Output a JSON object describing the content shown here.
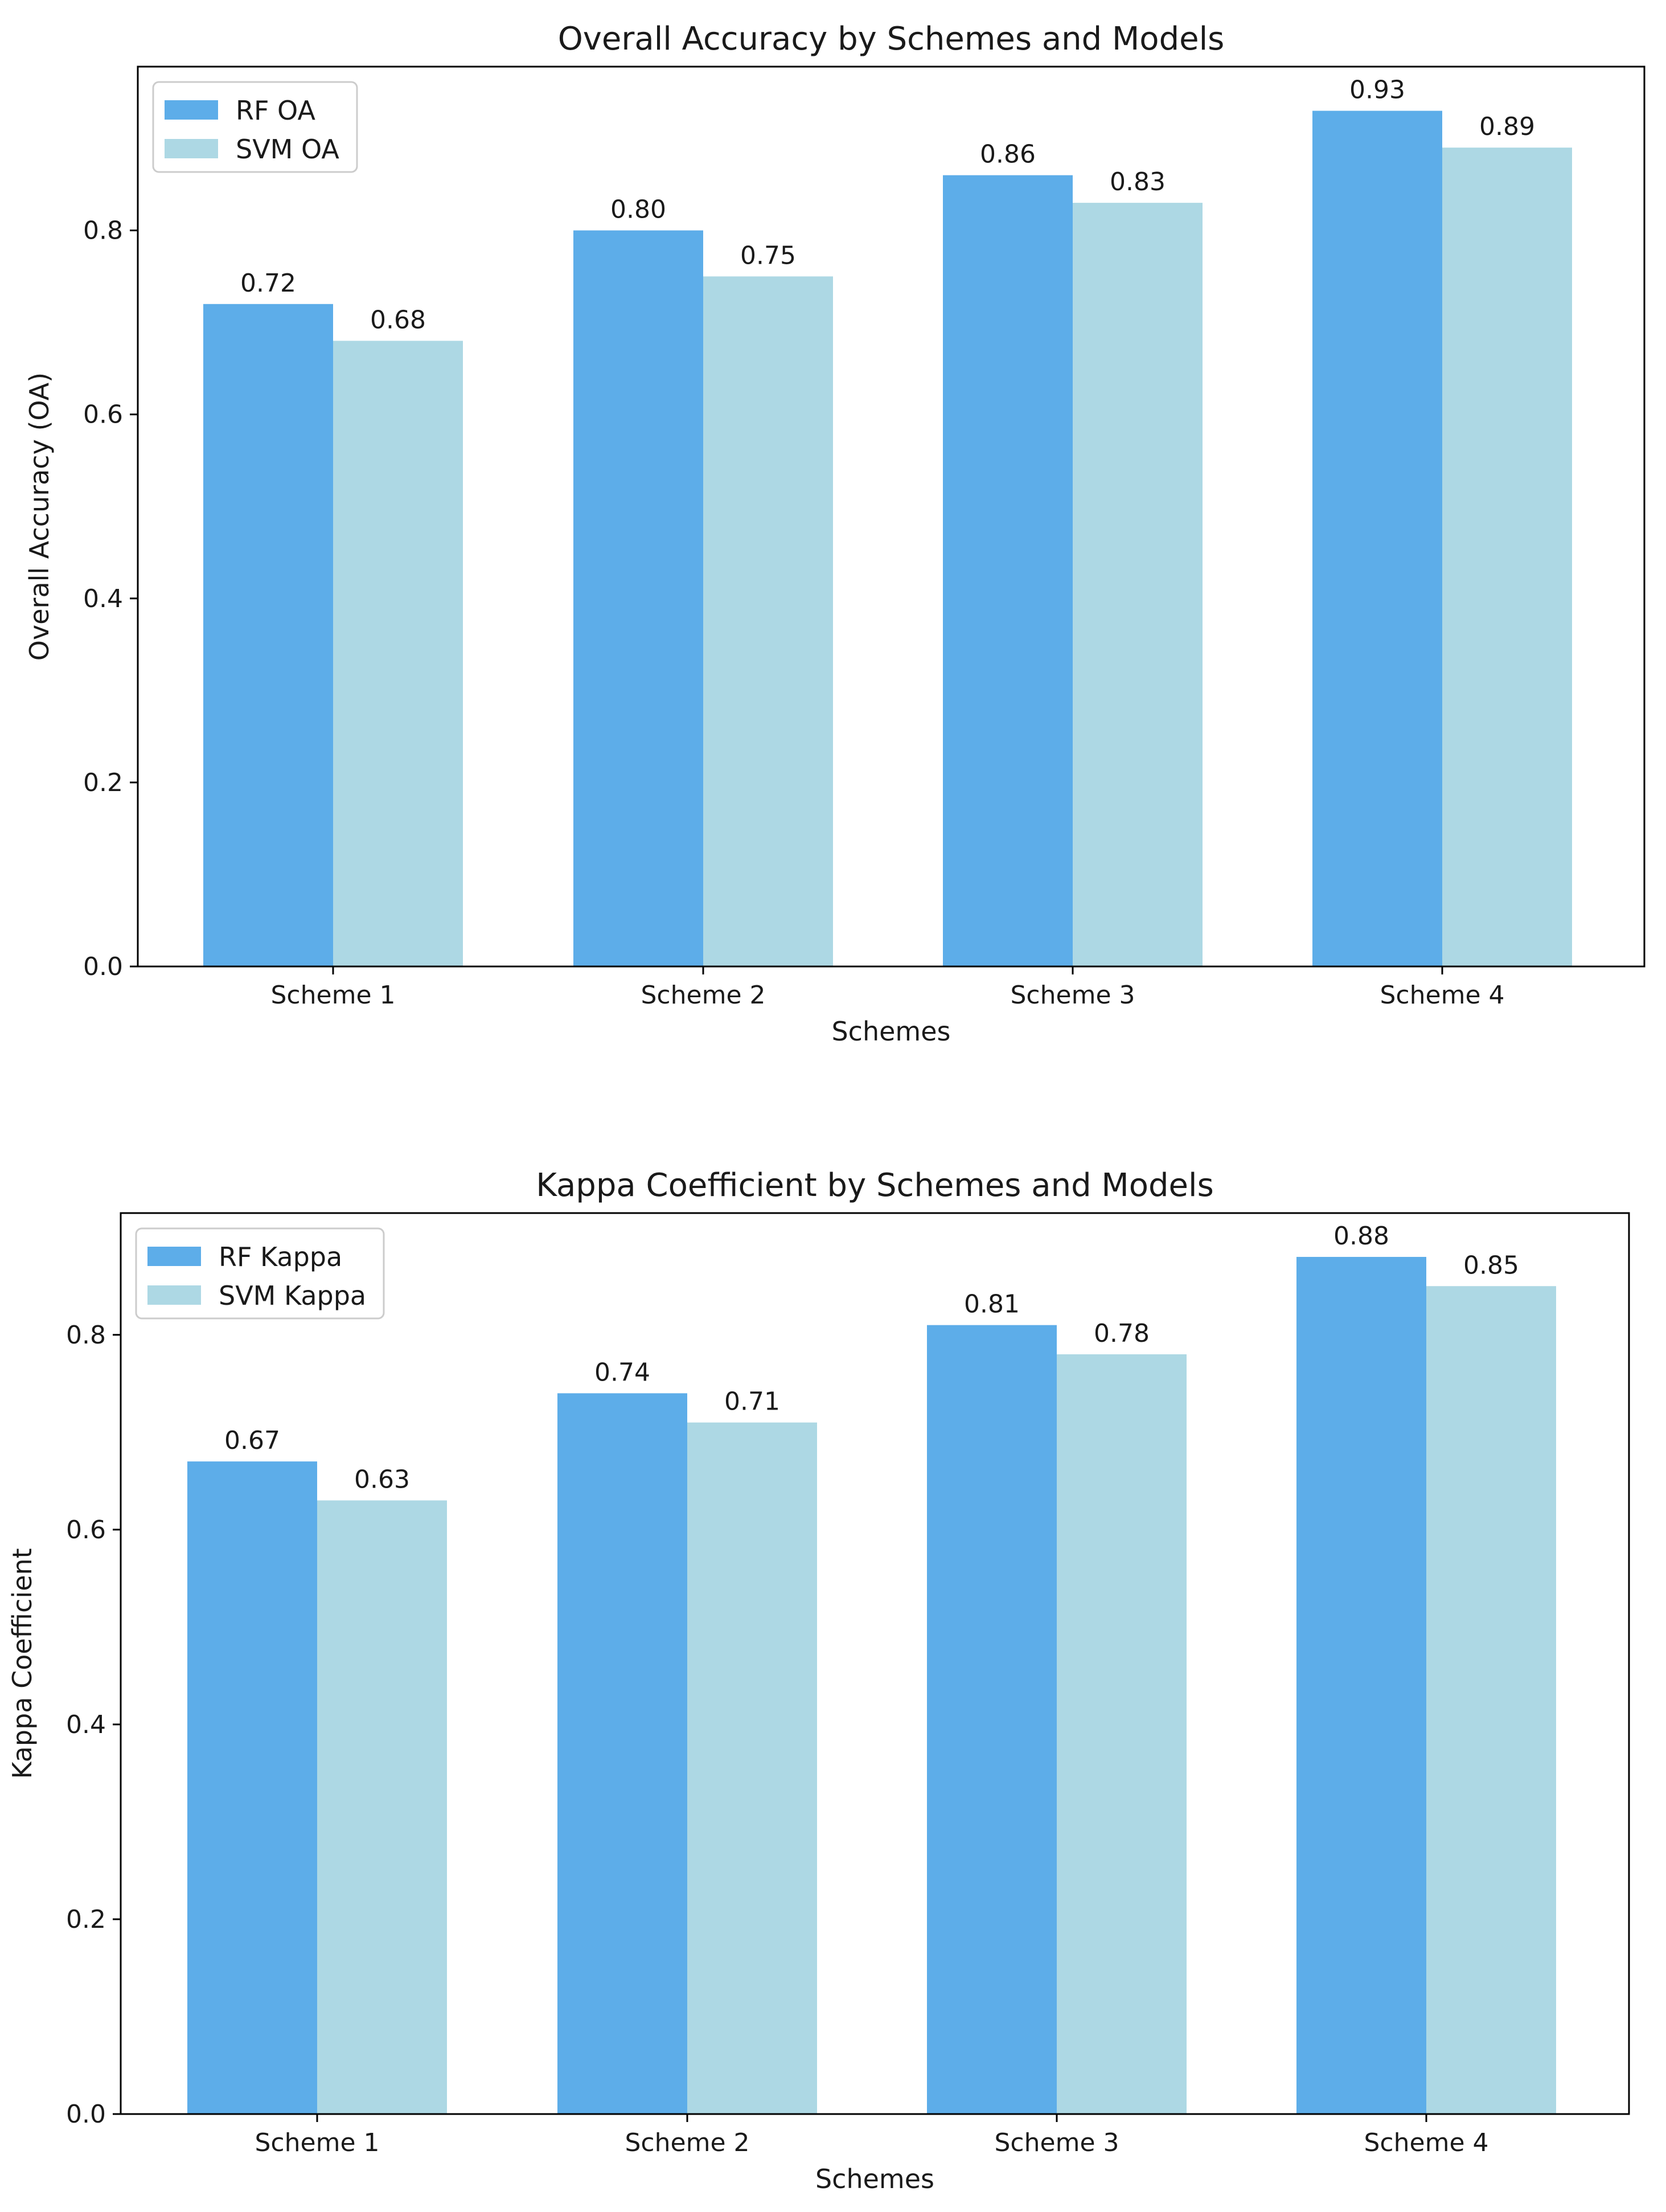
{
  "chart_data": [
    {
      "type": "bar",
      "title": "Overall Accuracy by Schemes and Models",
      "xlabel": "Schemes",
      "ylabel": "Overall Accuracy (OA)",
      "categories": [
        "Scheme 1",
        "Scheme 2",
        "Scheme 3",
        "Scheme 4"
      ],
      "series": [
        {
          "name": "RF OA",
          "values": [
            0.72,
            0.8,
            0.86,
            0.93
          ],
          "color": "#5DADE9",
          "value_labels": [
            "0.72",
            "0.80",
            "0.86",
            "0.93"
          ]
        },
        {
          "name": "SVM OA",
          "values": [
            0.68,
            0.75,
            0.83,
            0.89
          ],
          "color": "#ADD8E4",
          "value_labels": [
            "0.68",
            "0.75",
            "0.83",
            "0.89"
          ]
        }
      ],
      "ylim": [
        0,
        0.978
      ],
      "yticks": [
        0.0,
        0.2,
        0.4,
        0.6,
        0.8
      ],
      "ytick_labels": [
        "0.0",
        "0.2",
        "0.4",
        "0.6",
        "0.8"
      ],
      "grid": false,
      "legend_position": "top-left"
    },
    {
      "type": "bar",
      "title": "Kappa Coefficient by Schemes and Models",
      "xlabel": "Schemes",
      "ylabel": "Kappa Coefficient",
      "categories": [
        "Scheme 1",
        "Scheme 2",
        "Scheme 3",
        "Scheme 4"
      ],
      "series": [
        {
          "name": "RF Kappa",
          "values": [
            0.67,
            0.74,
            0.81,
            0.88
          ],
          "color": "#5DADE9",
          "value_labels": [
            "0.67",
            "0.74",
            "0.81",
            "0.88"
          ]
        },
        {
          "name": "SVM Kappa",
          "values": [
            0.63,
            0.71,
            0.78,
            0.85
          ],
          "color": "#ADD8E4",
          "value_labels": [
            "0.63",
            "0.71",
            "0.78",
            "0.85"
          ]
        }
      ],
      "ylim": [
        0,
        0.925
      ],
      "yticks": [
        0.0,
        0.2,
        0.4,
        0.6,
        0.8
      ],
      "ytick_labels": [
        "0.0",
        "0.2",
        "0.4",
        "0.6",
        "0.8"
      ],
      "grid": false,
      "legend_position": "top-left"
    }
  ]
}
